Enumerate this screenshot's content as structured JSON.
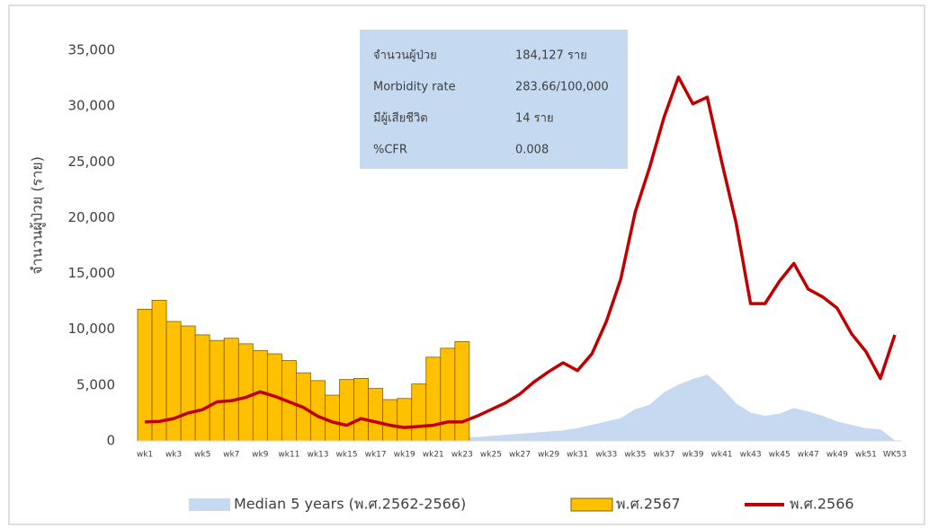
{
  "chart_data": {
    "type": "bar",
    "ylabel": "จำนวนผู้ป่วย (ราย)",
    "categories": [
      "wk1",
      null,
      "wk3",
      null,
      "wk5",
      null,
      "wk7",
      null,
      "wk9",
      null,
      "wk11",
      null,
      "wk13",
      null,
      "wk15",
      null,
      "wk17",
      null,
      "wk19",
      null,
      "wk21",
      null,
      "wk23",
      null,
      "wk25",
      null,
      "wk27",
      null,
      "wk29",
      null,
      "wk31",
      null,
      "wk33",
      null,
      "wk35",
      null,
      "wk37",
      null,
      "wk39",
      null,
      "wk41",
      null,
      "wk43",
      null,
      "wk45",
      null,
      "wk47",
      null,
      "wk49",
      null,
      "wk51",
      null,
      "WK53"
    ],
    "series": [
      {
        "name": "Median 5 years (พ.ศ.2562-2566)",
        "type": "area",
        "color": "#c6d9f0",
        "values": [
          1200,
          1300,
          1300,
          1200,
          1100,
          1000,
          1000,
          900,
          800,
          800,
          700,
          600,
          500,
          400,
          400,
          400,
          300,
          300,
          300,
          300,
          300,
          300,
          300,
          300,
          400,
          500,
          600,
          700,
          800,
          900,
          1100,
          1400,
          1700,
          2000,
          2800,
          3200,
          4300,
          5000,
          5500,
          5900,
          4700,
          3300,
          2500,
          2200,
          2400,
          2900,
          2600,
          2200,
          1700,
          1400,
          1100,
          1000,
          0
        ]
      },
      {
        "name": "พ.ศ.2567",
        "type": "bar",
        "color": "#ffc000",
        "values": [
          11800,
          12600,
          10700,
          10300,
          9500,
          9000,
          9200,
          8700,
          8100,
          7800,
          7200,
          6100,
          5400,
          4100,
          5500,
          5600,
          4700,
          3700,
          3800,
          5100,
          7500,
          8300,
          8900,
          null,
          null,
          null,
          null,
          null,
          null,
          null,
          null,
          null,
          null,
          null,
          null,
          null,
          null,
          null,
          null,
          null,
          null,
          null,
          null,
          null,
          null,
          null,
          null,
          null,
          null,
          null,
          null,
          null,
          null
        ]
      },
      {
        "name": "พ.ศ.2566",
        "type": "line",
        "color": "#c00000",
        "values": [
          1700,
          1750,
          2000,
          2500,
          2800,
          3500,
          3600,
          3900,
          4400,
          4000,
          3500,
          3000,
          2200,
          1700,
          1400,
          2000,
          1700,
          1400,
          1200,
          1300,
          1400,
          1700,
          1700,
          2200,
          2800,
          3400,
          4200,
          5300,
          6200,
          7000,
          6300,
          7800,
          10700,
          14500,
          20500,
          24500,
          29000,
          32600,
          30200,
          30800,
          25000,
          19500,
          12300,
          12300,
          14300,
          15900,
          13600,
          12900,
          11900,
          9600,
          8000,
          5600,
          9500
        ]
      }
    ],
    "ylim": [
      0,
      35000
    ],
    "yticks": [
      0,
      {
        "value": 5000,
        "label": "5,000"
      },
      {
        "value": 10000,
        "label": "10,000"
      },
      {
        "value": 15000,
        "label": "15,000"
      },
      {
        "value": 20000,
        "label": "20,000"
      },
      {
        "value": 25000,
        "label": "25,000"
      },
      {
        "value": 30000,
        "label": "30,000"
      },
      {
        "value": 35000,
        "label": "35,000"
      }
    ],
    "info_box": [
      {
        "label": "จำนวนผู้ป่วย",
        "value": "184,127 ราย"
      },
      {
        "label": "Morbidity rate",
        "value": "283.66/100,000"
      },
      {
        "label": "มีผู้เสียชีวิต",
        "value": "14 ราย"
      },
      {
        "label": "%CFR",
        "value": "0.008"
      }
    ],
    "legend": "bottom"
  }
}
